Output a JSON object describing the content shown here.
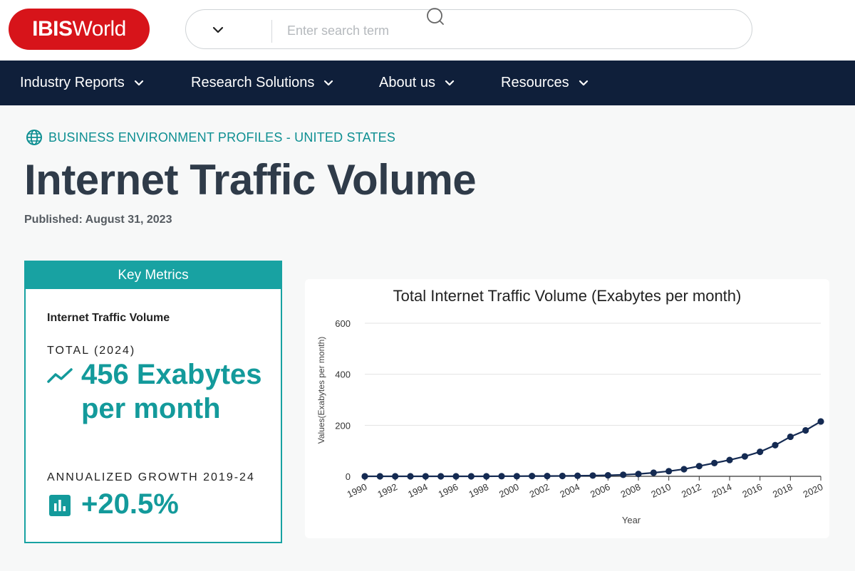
{
  "header": {
    "logo": {
      "part1": "IBIS",
      "part2": "World",
      "color": "#d7141a"
    },
    "search": {
      "placeholder": "Enter search term",
      "value": ""
    }
  },
  "nav": {
    "items": [
      {
        "label": "Industry Reports"
      },
      {
        "label": "Research Solutions"
      },
      {
        "label": "About us"
      },
      {
        "label": "Resources"
      }
    ],
    "background": "#0f1f3a"
  },
  "page": {
    "breadcrumb": "BUSINESS ENVIRONMENT PROFILES - UNITED STATES",
    "title": "Internet Traffic Volume",
    "published_label": "Published:",
    "published_date": "August 31, 2023"
  },
  "key_metrics": {
    "header": "Key Metrics",
    "metric_name": "Internet Traffic Volume",
    "total_label": "TOTAL (2024)",
    "total_value": "456 Exabytes per month",
    "growth_label": "ANNUALIZED GROWTH 2019-24",
    "growth_value": "+20.5%",
    "accent": "#18a2a2"
  },
  "chart_data": {
    "type": "line",
    "title": "Total Internet Traffic Volume (Exabytes per month)",
    "xlabel": "Year",
    "ylabel": "Values(Exabytes per month)",
    "ylim": [
      0,
      600
    ],
    "yticks": [
      0,
      200,
      400,
      600
    ],
    "xticks": [
      "1990",
      "1992",
      "1994",
      "1996",
      "1998",
      "2000",
      "2002",
      "2004",
      "2006",
      "2008",
      "2010",
      "2012",
      "2014",
      "2016",
      "2018",
      "2020"
    ],
    "x": [
      1990,
      1991,
      1992,
      1993,
      1994,
      1995,
      1996,
      1997,
      1998,
      1999,
      2000,
      2001,
      2002,
      2003,
      2004,
      2005,
      2006,
      2007,
      2008,
      2009,
      2010,
      2011,
      2012,
      2013,
      2014,
      2015,
      2016,
      2017,
      2018,
      2019,
      2020
    ],
    "series": [
      {
        "values": [
          0,
          0,
          0,
          0,
          0,
          0,
          0,
          0,
          0,
          0.5,
          0.5,
          1,
          1,
          1.5,
          2,
          3,
          4,
          6,
          9,
          14,
          20,
          28,
          40,
          52,
          64,
          78,
          96,
          122,
          155,
          180,
          215
        ],
        "color": "#142a52"
      }
    ],
    "grid": true
  }
}
